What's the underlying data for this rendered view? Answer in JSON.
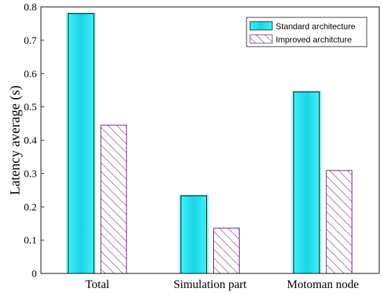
{
  "chart_data": {
    "type": "bar",
    "categories": [
      "Total",
      "Simulation part",
      "Motoman node"
    ],
    "series": [
      {
        "name": "Standard architecture",
        "values": [
          0.78,
          0.233,
          0.545
        ],
        "color": "#22dce8",
        "pattern": "solid"
      },
      {
        "name": "Improved architcture",
        "values": [
          0.445,
          0.136,
          0.309
        ],
        "color": "#7b2d8b",
        "pattern": "hatch"
      }
    ],
    "title": "",
    "xlabel": "",
    "ylabel": "Latency average  (s)",
    "ylim": [
      0,
      0.8
    ],
    "yticks": [
      "0",
      "0.1",
      "0.2",
      "0.3",
      "0.4",
      "0.5",
      "0.6",
      "0.7",
      "0.8"
    ],
    "grid": false,
    "legend_position": "top-right"
  }
}
